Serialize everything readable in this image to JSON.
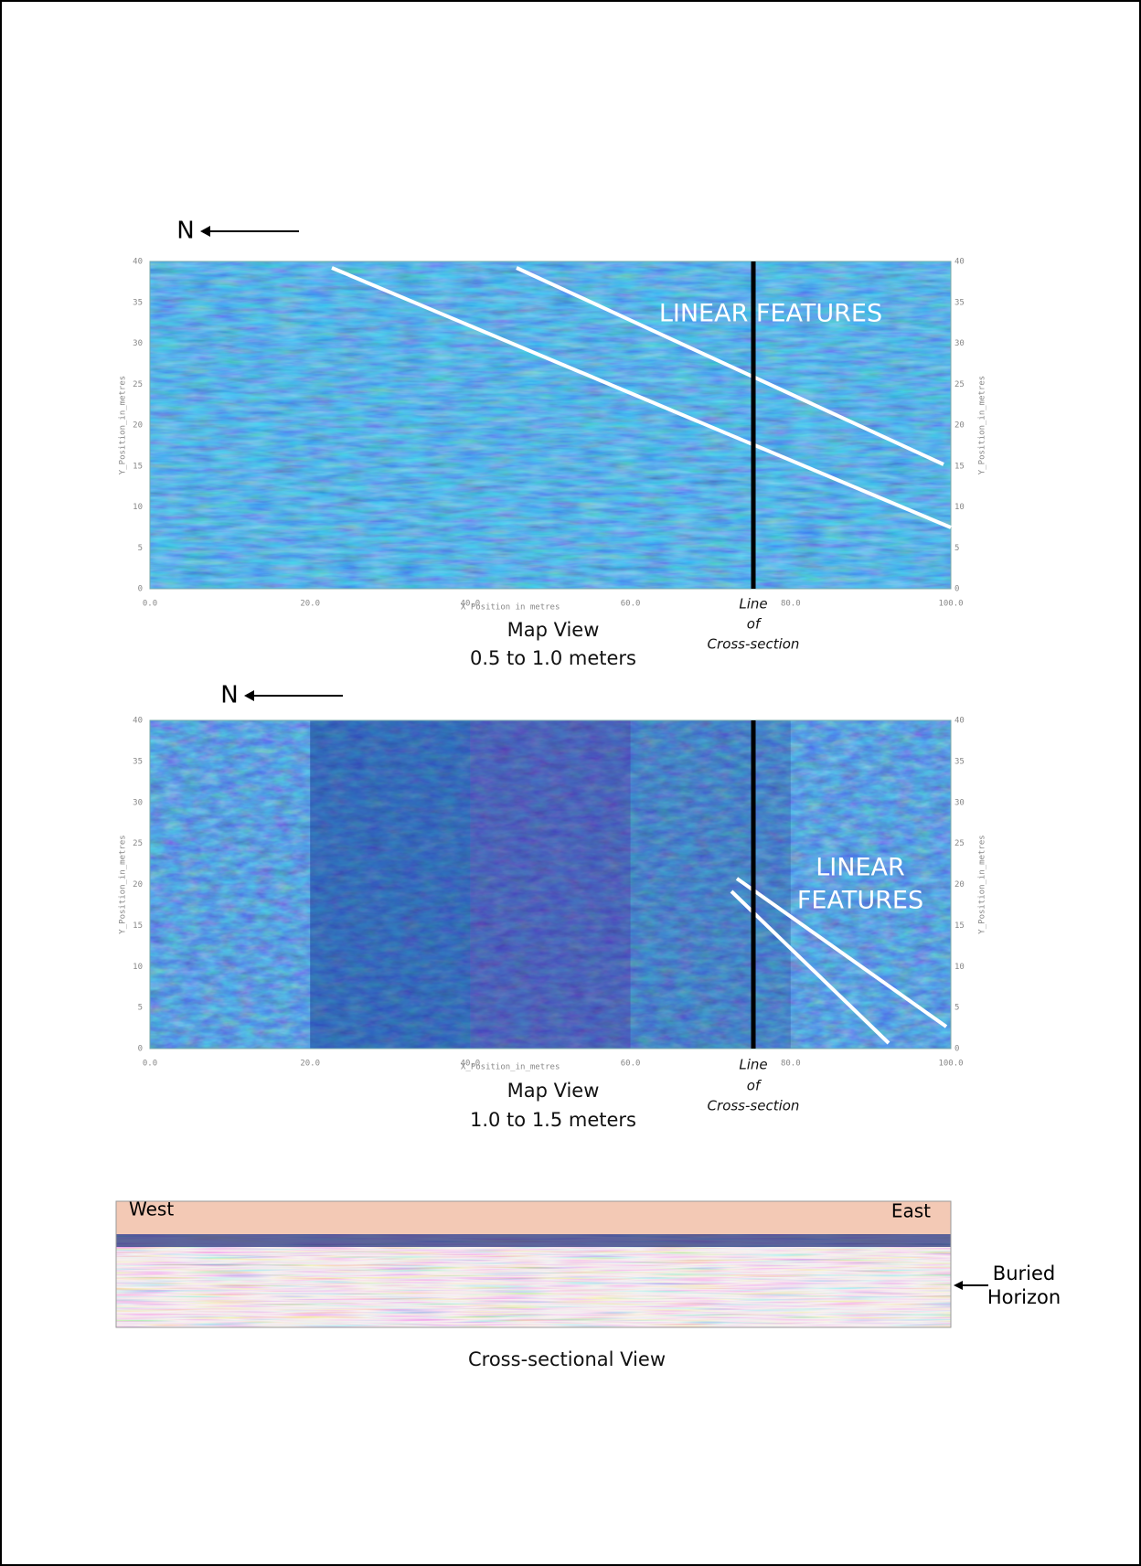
{
  "panels": [
    {
      "north": "N",
      "x_ticks": [
        "0.0",
        "20.0",
        "40.0",
        "60.0",
        "80.0",
        "100.0"
      ],
      "y_ticks": [
        "0",
        "5",
        "10",
        "15",
        "20",
        "25",
        "30",
        "35",
        "40"
      ],
      "x_label": "X Position in metres",
      "y_label": "Y_Position_in_metres",
      "annotation": [
        "LINEAR FEATURES"
      ],
      "line_label": [
        "Line",
        "of",
        "Cross-section"
      ],
      "caption": [
        "Map View",
        "0.5 to 1.0 meters"
      ]
    },
    {
      "north": "N",
      "x_ticks": [
        "0.0",
        "20.0",
        "40.0",
        "60.0",
        "80.0",
        "100.0"
      ],
      "y_ticks": [
        "0",
        "5",
        "10",
        "15",
        "20",
        "25",
        "30",
        "35",
        "40"
      ],
      "x_label": "X_Position_in_metres",
      "y_label": "Y_Position_in_metres",
      "annotation": [
        "LINEAR",
        "FEATURES"
      ],
      "line_label": [
        "Line",
        "of",
        "Cross-section"
      ],
      "caption": [
        "Map View",
        "1.0 to 1.5 meters"
      ]
    }
  ],
  "cross_section": {
    "west": "West",
    "east": "East",
    "horizon_label": [
      "Buried",
      "Horizon"
    ],
    "caption": "Cross-sectional View"
  }
}
